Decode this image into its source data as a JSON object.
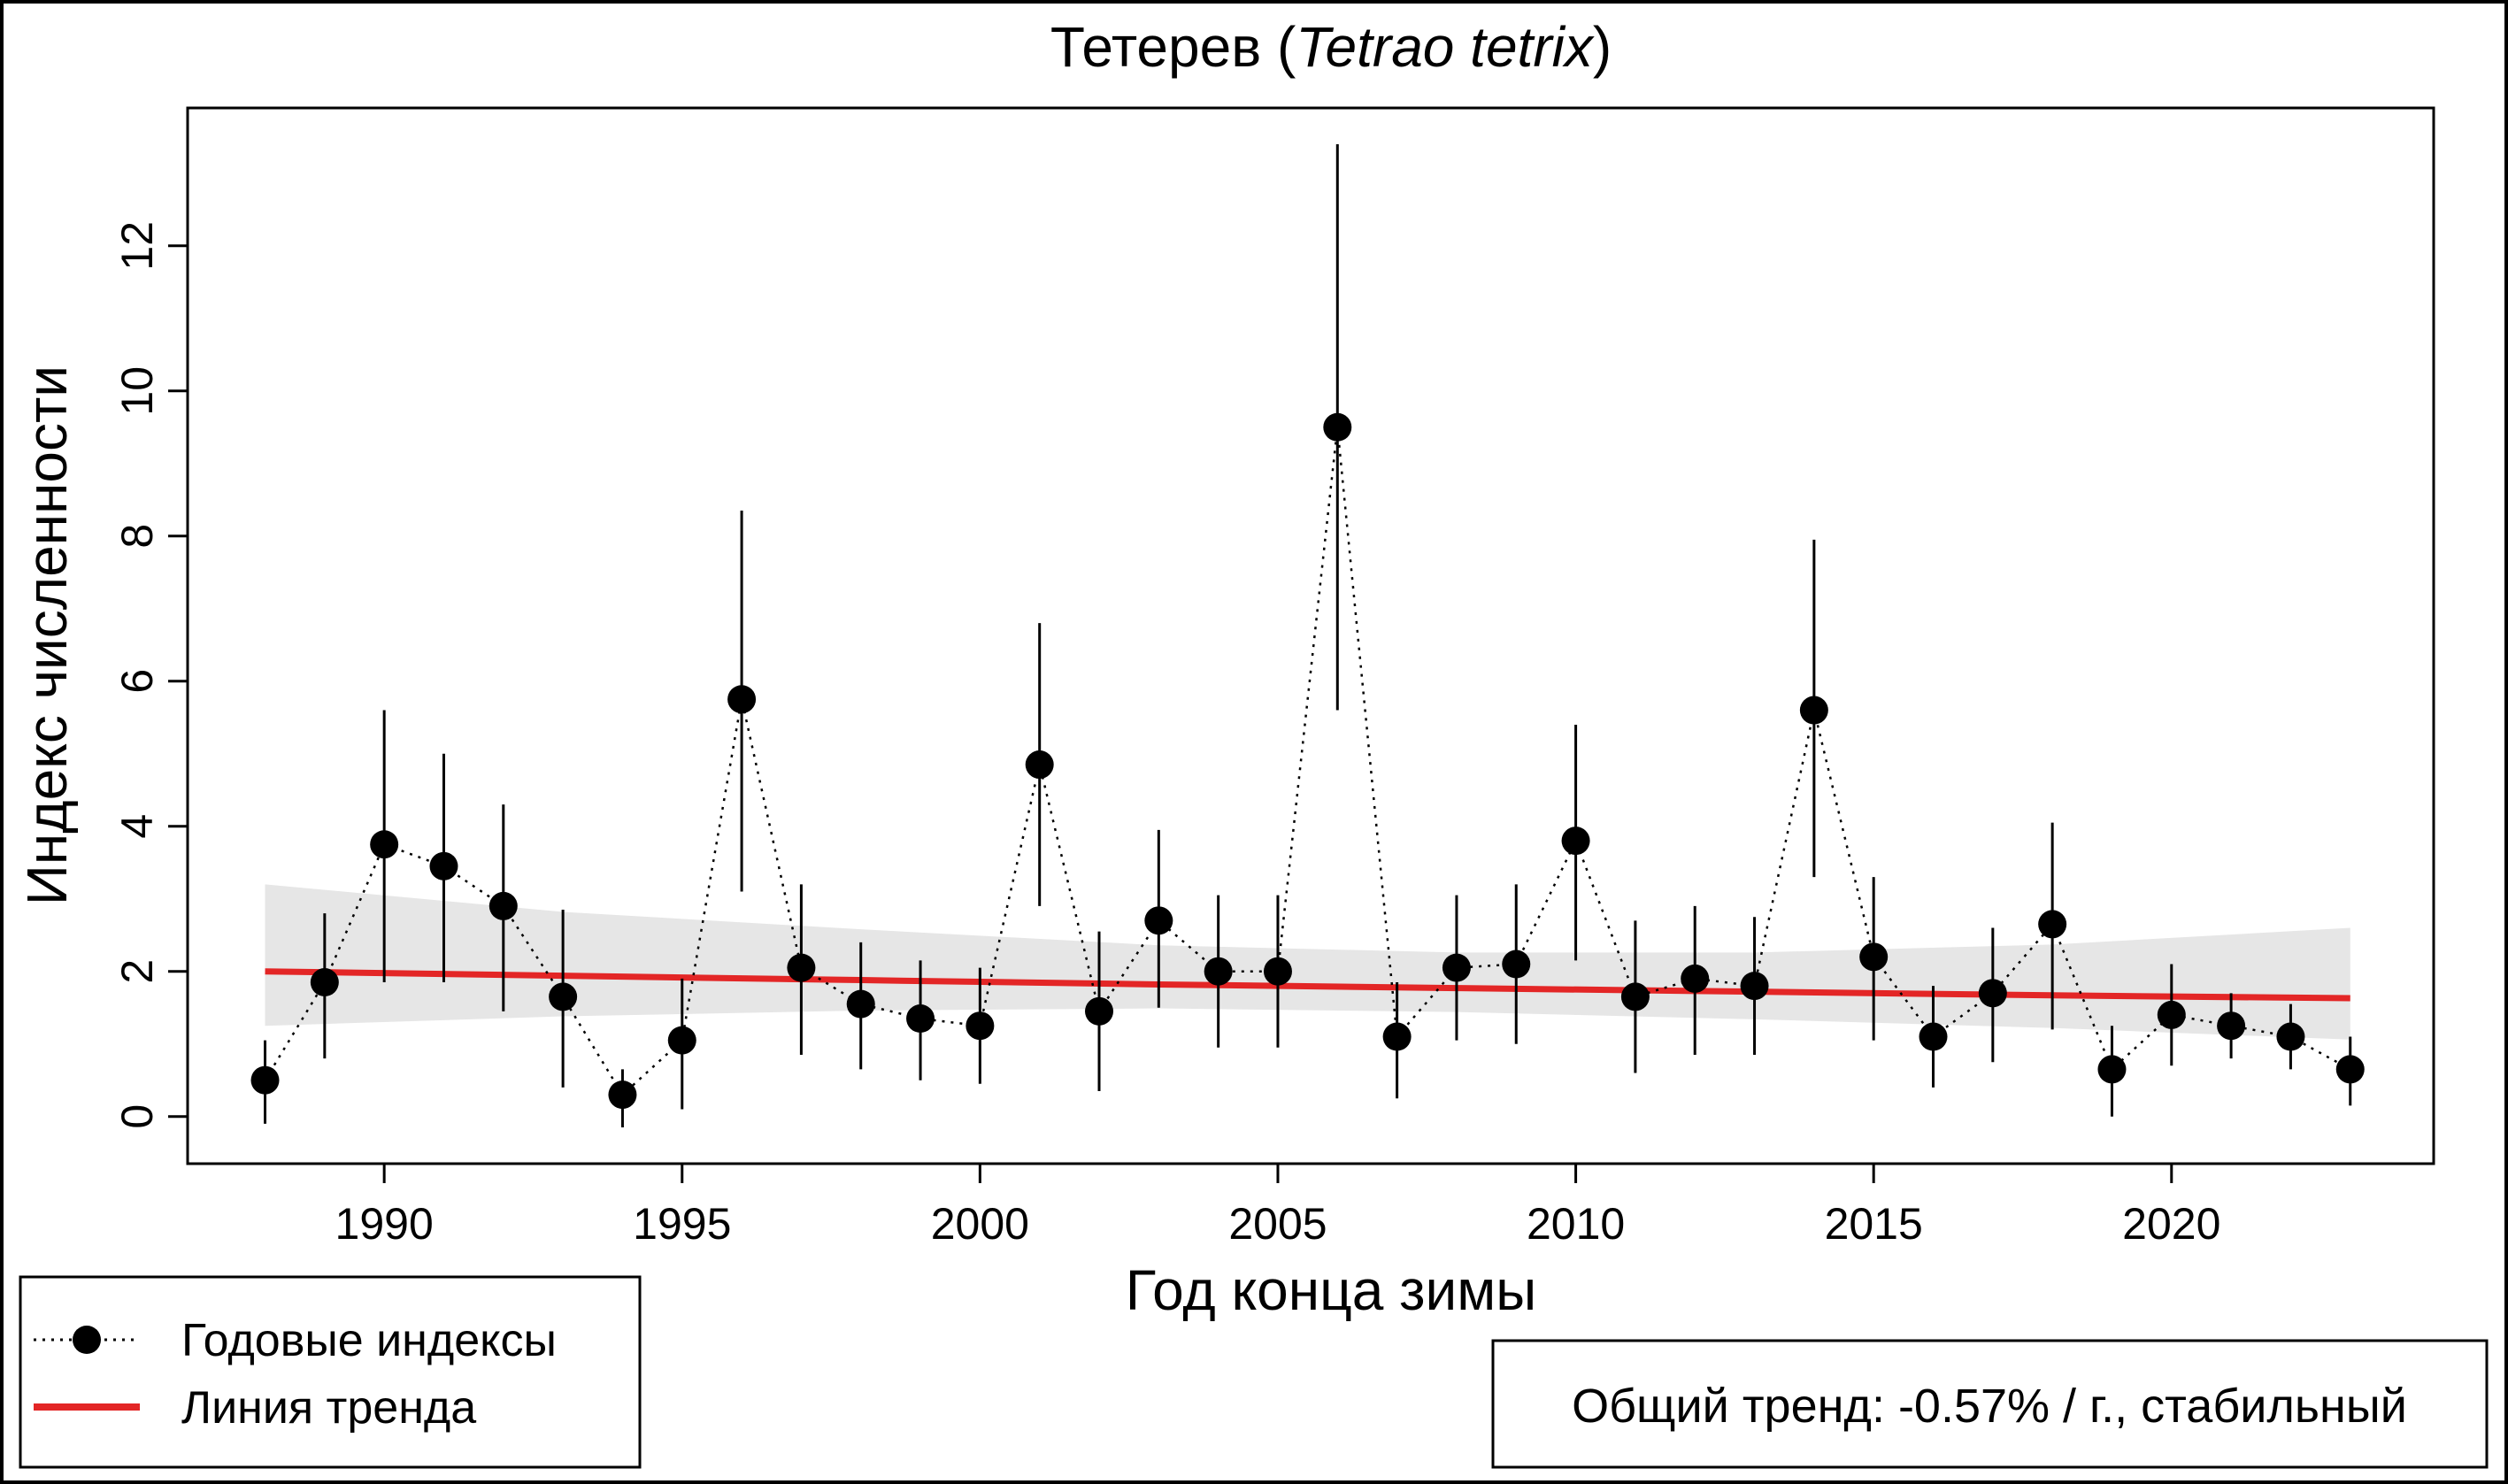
{
  "chart_data": {
    "type": "line",
    "title": {
      "prefix": "Тетерев (",
      "italic": "Tetrao tetrix",
      "suffix": ")"
    },
    "xlabel": "Год конца зимы",
    "ylabel": "Индекс численности",
    "xlim": [
      1986.7,
      2024.4
    ],
    "ylim": [
      -0.65,
      13.9
    ],
    "x_ticks": [
      1990,
      1995,
      2000,
      2005,
      2010,
      2015,
      2020
    ],
    "y_ticks": [
      0,
      2,
      4,
      6,
      8,
      10,
      12
    ],
    "series": [
      {
        "name": "Годовые индексы",
        "style": "dotted line with points and error bars",
        "points": [
          {
            "x": 1988,
            "y": 0.5,
            "low": -0.1,
            "high": 1.05
          },
          {
            "x": 1989,
            "y": 1.85,
            "low": 0.8,
            "high": 2.8
          },
          {
            "x": 1990,
            "y": 3.75,
            "low": 1.85,
            "high": 5.6
          },
          {
            "x": 1991,
            "y": 3.45,
            "low": 1.85,
            "high": 5.0
          },
          {
            "x": 1992,
            "y": 2.9,
            "low": 1.45,
            "high": 4.3
          },
          {
            "x": 1993,
            "y": 1.65,
            "low": 0.4,
            "high": 2.85
          },
          {
            "x": 1994,
            "y": 0.3,
            "low": -0.15,
            "high": 0.65
          },
          {
            "x": 1995,
            "y": 1.05,
            "low": 0.1,
            "high": 1.9
          },
          {
            "x": 1996,
            "y": 5.75,
            "low": 3.1,
            "high": 8.35
          },
          {
            "x": 1997,
            "y": 2.05,
            "low": 0.85,
            "high": 3.2
          },
          {
            "x": 1998,
            "y": 1.55,
            "low": 0.65,
            "high": 2.4
          },
          {
            "x": 1999,
            "y": 1.35,
            "low": 0.5,
            "high": 2.15
          },
          {
            "x": 2000,
            "y": 1.25,
            "low": 0.45,
            "high": 2.05
          },
          {
            "x": 2001,
            "y": 4.85,
            "low": 2.9,
            "high": 6.8
          },
          {
            "x": 2002,
            "y": 1.45,
            "low": 0.35,
            "high": 2.55
          },
          {
            "x": 2003,
            "y": 2.7,
            "low": 1.5,
            "high": 3.95
          },
          {
            "x": 2004,
            "y": 2.0,
            "low": 0.95,
            "high": 3.05
          },
          {
            "x": 2005,
            "y": 2.0,
            "low": 0.95,
            "high": 3.05
          },
          {
            "x": 2006,
            "y": 9.5,
            "low": 5.6,
            "high": 13.4
          },
          {
            "x": 2007,
            "y": 1.1,
            "low": 0.25,
            "high": 1.85
          },
          {
            "x": 2008,
            "y": 2.05,
            "low": 1.05,
            "high": 3.05
          },
          {
            "x": 2009,
            "y": 2.1,
            "low": 1.0,
            "high": 3.2
          },
          {
            "x": 2010,
            "y": 3.8,
            "low": 2.15,
            "high": 5.4
          },
          {
            "x": 2011,
            "y": 1.65,
            "low": 0.6,
            "high": 2.7
          },
          {
            "x": 2012,
            "y": 1.9,
            "low": 0.85,
            "high": 2.9
          },
          {
            "x": 2013,
            "y": 1.8,
            "low": 0.85,
            "high": 2.75
          },
          {
            "x": 2014,
            "y": 5.6,
            "low": 3.3,
            "high": 7.95
          },
          {
            "x": 2015,
            "y": 2.2,
            "low": 1.05,
            "high": 3.3
          },
          {
            "x": 2016,
            "y": 1.1,
            "low": 0.4,
            "high": 1.8
          },
          {
            "x": 2017,
            "y": 1.7,
            "low": 0.75,
            "high": 2.6
          },
          {
            "x": 2018,
            "y": 2.65,
            "low": 1.2,
            "high": 4.05
          },
          {
            "x": 2019,
            "y": 0.65,
            "low": 0.0,
            "high": 1.25
          },
          {
            "x": 2020,
            "y": 1.4,
            "low": 0.7,
            "high": 2.1
          },
          {
            "x": 2021,
            "y": 1.25,
            "low": 0.8,
            "high": 1.7
          },
          {
            "x": 2022,
            "y": 1.1,
            "low": 0.65,
            "high": 1.55
          },
          {
            "x": 2023,
            "y": 0.65,
            "low": 0.15,
            "high": 1.1
          }
        ]
      },
      {
        "name": "Линия тренда",
        "style": "solid red line with grey confidence band",
        "x": [
          1988,
          1993,
          1998,
          2003,
          2008,
          2013,
          2018,
          2023
        ],
        "y": [
          2.0,
          1.94,
          1.88,
          1.82,
          1.77,
          1.72,
          1.67,
          1.63
        ],
        "band_low": [
          1.25,
          1.38,
          1.46,
          1.49,
          1.44,
          1.34,
          1.22,
          1.06
        ],
        "band_high": [
          3.2,
          2.82,
          2.58,
          2.36,
          2.26,
          2.26,
          2.37,
          2.6
        ]
      }
    ],
    "colors": {
      "points": "#000000",
      "trend": "#e32626",
      "band": "#e6e6e6",
      "trend_text": "#00008b"
    },
    "legend": {
      "position": "bottom-left",
      "items": [
        "Годовые индексы",
        "Линия тренда"
      ]
    },
    "trend_note": {
      "position": "bottom-right",
      "text": "Общий тренд: -0.57% / г., стабильный"
    }
  }
}
